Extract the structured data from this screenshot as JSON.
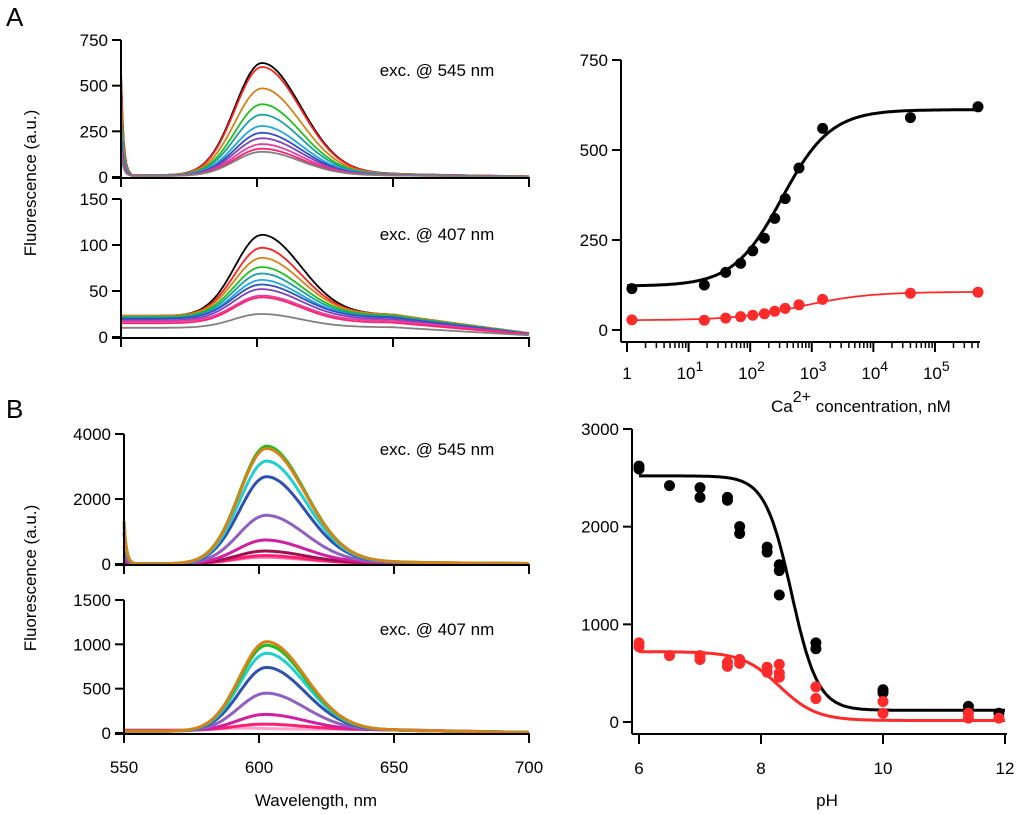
{
  "figure": {
    "panel_letters": [
      "A",
      "B"
    ],
    "shared_ylabel": "Fluorescence (a.u.)",
    "wavelength_xlabel": "Wavelength, nm"
  },
  "chart_data": [
    {
      "id": "A-spectra-545",
      "type": "line",
      "panel": "A",
      "annotation": "exc. @ 545 nm",
      "xlim": [
        550,
        700
      ],
      "ylim": [
        0,
        750
      ],
      "yticks": [
        0,
        250,
        500,
        750
      ],
      "xticks": [
        550,
        600,
        650,
        700
      ],
      "peak_nm": 602,
      "series": [
        {
          "color": "#000000",
          "peak": 600,
          "baseline": 10,
          "tail": 12
        },
        {
          "color": "#ff2020",
          "peak": 580,
          "baseline": 10,
          "tail": 11
        },
        {
          "color": "#d4821a",
          "peak": 465,
          "baseline": 10,
          "tail": 10
        },
        {
          "color": "#1fc020",
          "peak": 380,
          "baseline": 9,
          "tail": 9
        },
        {
          "color": "#1aa0a0",
          "peak": 325,
          "baseline": 9,
          "tail": 8
        },
        {
          "color": "#20a8e0",
          "peak": 265,
          "baseline": 8,
          "tail": 7
        },
        {
          "color": "#3050c0",
          "peak": 230,
          "baseline": 8,
          "tail": 6
        },
        {
          "color": "#8040c0",
          "peak": 200,
          "baseline": 7,
          "tail": 6
        },
        {
          "color": "#e040a0",
          "peak": 170,
          "baseline": 7,
          "tail": 5
        },
        {
          "color": "#ff2070",
          "peak": 145,
          "baseline": 6,
          "tail": 5
        },
        {
          "color": "#808080",
          "peak": 130,
          "baseline": 6,
          "tail": 4
        }
      ]
    },
    {
      "id": "A-spectra-407",
      "type": "line",
      "panel": "A",
      "annotation": "exc. @ 407 nm",
      "xlim": [
        550,
        700
      ],
      "ylim": [
        0,
        150
      ],
      "yticks": [
        0,
        50,
        100,
        150
      ],
      "xticks": [
        550,
        600,
        650,
        700
      ],
      "peak_nm": 602,
      "series": [
        {
          "color": "#000000",
          "peak": 107,
          "baseline": 23,
          "tail": 2
        },
        {
          "color": "#ff2020",
          "peak": 93,
          "baseline": 23,
          "tail": 2
        },
        {
          "color": "#d4821a",
          "peak": 82,
          "baseline": 23,
          "tail": 2
        },
        {
          "color": "#1fc020",
          "peak": 72,
          "baseline": 22,
          "tail": 2
        },
        {
          "color": "#1aa0a0",
          "peak": 65,
          "baseline": 21,
          "tail": 2
        },
        {
          "color": "#20a8e0",
          "peak": 58,
          "baseline": 20,
          "tail": 2
        },
        {
          "color": "#3050c0",
          "peak": 53,
          "baseline": 20,
          "tail": 2
        },
        {
          "color": "#8040c0",
          "peak": 48,
          "baseline": 18,
          "tail": 2
        },
        {
          "color": "#e040a0",
          "peak": 43,
          "baseline": 17,
          "tail": 1
        },
        {
          "color": "#ff2070",
          "peak": 41,
          "baseline": 15,
          "tail": 1
        },
        {
          "color": "#808080",
          "peak": 23,
          "baseline": 10,
          "tail": 1
        }
      ]
    },
    {
      "id": "A-calcium-titration",
      "type": "scatter",
      "panel": "A",
      "xscale": "log",
      "xlim": [
        1,
        500000
      ],
      "ylim": [
        0,
        750
      ],
      "yticks": [
        0,
        250,
        500,
        750
      ],
      "xticks": [
        {
          "value": 1,
          "base": "1",
          "exp": ""
        },
        {
          "value": 10,
          "base": "10",
          "exp": "1"
        },
        {
          "value": 100,
          "base": "10",
          "exp": "2"
        },
        {
          "value": 1000,
          "base": "10",
          "exp": "3"
        },
        {
          "value": 10000,
          "base": "10",
          "exp": "4"
        },
        {
          "value": 100000,
          "base": "10",
          "exp": "5"
        }
      ],
      "xlabel_prefix": "Ca",
      "xlabel_sup": "2+",
      "xlabel_suffix": " concentration, nM",
      "series": [
        {
          "name": "exc. 545 nm",
          "color": "#000000",
          "x": [
            1.2,
            18,
            40,
            70,
            110,
            170,
            250,
            370,
            620,
            1500,
            40000,
            500000
          ],
          "y": [
            115,
            125,
            160,
            185,
            220,
            255,
            310,
            365,
            450,
            560,
            590,
            620
          ],
          "fit": {
            "bottom": 122,
            "top": 612,
            "kd_nM": 330,
            "hill": 1.1
          }
        },
        {
          "name": "exc. 407 nm",
          "color": "#ff2a2a",
          "x": [
            1.2,
            18,
            40,
            70,
            110,
            170,
            250,
            370,
            620,
            1500,
            40000,
            500000
          ],
          "y": [
            28,
            27,
            33,
            37,
            41,
            45,
            52,
            60,
            70,
            85,
            102,
            105
          ],
          "fit": {
            "bottom": 27,
            "top": 106,
            "kd_nM": 700,
            "hill": 0.8
          }
        }
      ]
    },
    {
      "id": "B-spectra-545",
      "type": "line",
      "panel": "B",
      "annotation": "exc. @ 545 nm",
      "xlim": [
        550,
        700
      ],
      "ylim": [
        0,
        4000
      ],
      "yticks": [
        0,
        2000,
        4000
      ],
      "xticks": [
        550,
        600,
        650,
        700
      ],
      "peak_nm": 603,
      "series": [
        {
          "color": "#ff70b0",
          "peak": 150,
          "baseline": 5,
          "tail": 30
        },
        {
          "color": "#ff2070",
          "peak": 200,
          "baseline": 5,
          "tail": 30
        },
        {
          "color": "#a01050",
          "peak": 320,
          "baseline": 5,
          "tail": 40
        },
        {
          "color": "#d020a0",
          "peak": 620,
          "baseline": 5,
          "tail": 60
        },
        {
          "color": "#9060c0",
          "peak": 1360,
          "baseline": 5,
          "tail": 70
        },
        {
          "color": "#3050b0",
          "peak": 2530,
          "baseline": 5,
          "tail": 80
        },
        {
          "color": "#20d0d0",
          "peak": 3000,
          "baseline": 5,
          "tail": 85
        },
        {
          "color": "#20c020",
          "peak": 3450,
          "baseline": 5,
          "tail": 90
        },
        {
          "color": "#d4821a",
          "peak": 3380,
          "baseline": 5,
          "tail": 90
        }
      ]
    },
    {
      "id": "B-spectra-407",
      "type": "line",
      "panel": "B",
      "annotation": "exc. @ 407 nm",
      "xlim": [
        550,
        700
      ],
      "ylim": [
        0,
        1500
      ],
      "yticks": [
        0,
        500,
        1000,
        1500
      ],
      "xticks": [
        550,
        600,
        650,
        700
      ],
      "xlabel": "Wavelength, nm",
      "peak_nm": 603,
      "series": [
        {
          "color": "#ffa0d0",
          "peak": 20,
          "baseline": 30,
          "tail": 15
        },
        {
          "color": "#ff2070",
          "peak": 80,
          "baseline": 30,
          "tail": 10
        },
        {
          "color": "#d020a0",
          "peak": 180,
          "baseline": 25,
          "tail": 15
        },
        {
          "color": "#9060c0",
          "peak": 410,
          "baseline": 20,
          "tail": 20
        },
        {
          "color": "#3050b0",
          "peak": 700,
          "baseline": 20,
          "tail": 20
        },
        {
          "color": "#20d0d0",
          "peak": 860,
          "baseline": 20,
          "tail": 20
        },
        {
          "color": "#20c020",
          "peak": 950,
          "baseline": 20,
          "tail": 20
        },
        {
          "color": "#d4821a",
          "peak": 990,
          "baseline": 20,
          "tail": 20
        }
      ]
    },
    {
      "id": "B-pH-titration",
      "type": "scatter",
      "panel": "B",
      "xlim": [
        6,
        12
      ],
      "ylim": [
        0,
        3000
      ],
      "yticks": [
        0,
        1000,
        2000,
        3000
      ],
      "xticks": [
        6,
        8,
        10,
        12
      ],
      "xlabel": "pH",
      "series": [
        {
          "name": "exc. 545 nm",
          "color": "#000000",
          "x": [
            6.0,
            6.0,
            6.5,
            7.0,
            7.0,
            7.45,
            7.45,
            7.65,
            7.65,
            8.1,
            8.1,
            8.3,
            8.3,
            8.3,
            8.9,
            8.9,
            10.0,
            10.0,
            11.4,
            11.9
          ],
          "y": [
            2620,
            2590,
            2420,
            2400,
            2300,
            2300,
            2270,
            2000,
            1930,
            1790,
            1740,
            1610,
            1550,
            1300,
            810,
            750,
            330,
            300,
            160,
            90
          ],
          "fit": {
            "bottom": 120,
            "top": 2520,
            "pKa": 8.5,
            "slope": 0.5
          }
        },
        {
          "name": "exc. 407 nm",
          "color": "#ff2a2a",
          "x": [
            6.0,
            6.0,
            6.5,
            7.0,
            7.0,
            7.45,
            7.45,
            7.65,
            7.65,
            8.1,
            8.1,
            8.3,
            8.3,
            8.3,
            8.9,
            8.9,
            10.0,
            10.0,
            11.4,
            11.4,
            11.9
          ],
          "y": [
            810,
            770,
            680,
            680,
            640,
            610,
            570,
            640,
            600,
            560,
            510,
            590,
            500,
            460,
            360,
            240,
            210,
            90,
            90,
            40,
            40
          ],
          "fit": {
            "bottom": 15,
            "top": 720,
            "pKa": 8.3,
            "slope": 0.7
          }
        }
      ]
    }
  ]
}
